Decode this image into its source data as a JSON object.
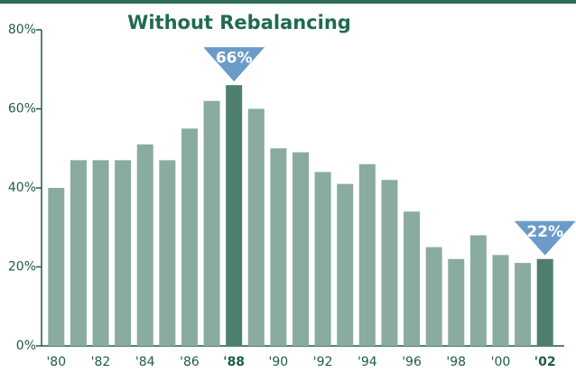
{
  "chart_data": {
    "type": "bar",
    "title": "Without Rebalancing",
    "categories": [
      "'80",
      null,
      "'82",
      null,
      "'84",
      null,
      "'86",
      null,
      "'88",
      null,
      "'90",
      null,
      "'92",
      null,
      "'94",
      null,
      "'96",
      null,
      "'98",
      null,
      "'00",
      null,
      "'02"
    ],
    "values": [
      40,
      47,
      47,
      47,
      51,
      47,
      55,
      62,
      66,
      60,
      50,
      49,
      44,
      41,
      46,
      42,
      34,
      25,
      22,
      28,
      23,
      21,
      22
    ],
    "value_labels": [
      null,
      null,
      null,
      null,
      null,
      null,
      null,
      null,
      "66%",
      null,
      null,
      null,
      null,
      null,
      null,
      null,
      null,
      null,
      null,
      null,
      null,
      null,
      "22%"
    ],
    "color": "#8aab9f",
    "highlight_color": "#4e7f6d",
    "callout_color": "#6b9bc8",
    "ylim": [
      0,
      80
    ],
    "yticks": [
      {
        "value": 0,
        "label": "0%"
      },
      {
        "value": 20,
        "label": "20%"
      },
      {
        "value": 40,
        "label": "40%"
      },
      {
        "value": 60,
        "label": "60%"
      },
      {
        "value": 80,
        "label": "80%"
      }
    ]
  }
}
